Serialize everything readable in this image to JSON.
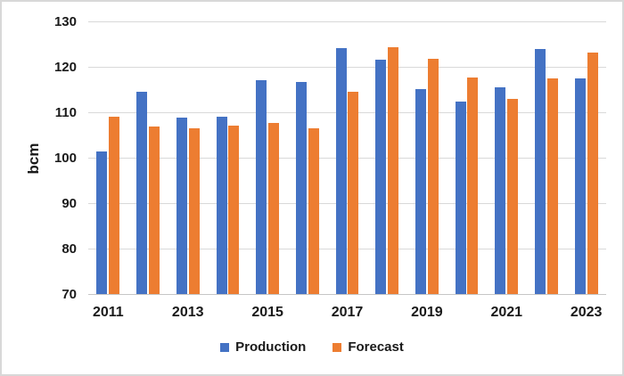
{
  "window": {
    "background": "#ffffff",
    "border_color": "#d8d8d8"
  },
  "chart_data": {
    "type": "bar",
    "title": "",
    "xlabel": "",
    "ylabel": "bcm",
    "categories": [
      2011,
      2012,
      2013,
      2014,
      2015,
      2016,
      2017,
      2018,
      2019,
      2020,
      2021,
      2022,
      2023
    ],
    "series": [
      {
        "name": "Production",
        "color": "#4472C4",
        "values": [
          101.4,
          114.6,
          108.8,
          109.0,
          117.1,
          116.6,
          124.1,
          121.5,
          115.1,
          112.3,
          115.4,
          123.9,
          117.4
        ]
      },
      {
        "name": "Forecast",
        "color": "#ED7D31",
        "values": [
          109.0,
          106.8,
          106.5,
          107.0,
          107.7,
          106.5,
          114.5,
          124.4,
          121.7,
          117.7,
          112.9,
          117.4,
          123.2
        ]
      }
    ],
    "ylim": [
      70,
      130
    ],
    "yticks": [
      70,
      80,
      90,
      100,
      110,
      120,
      130
    ],
    "xtick_labels": [
      "2011",
      "2013",
      "2015",
      "2017",
      "2019",
      "2021",
      "2023"
    ],
    "grid": "horizontal",
    "gridline_color": "#d9d9d9",
    "axis_line_color": "#c6c6c6",
    "text_color": "#1a1a1a",
    "legend_position": "bottom"
  }
}
